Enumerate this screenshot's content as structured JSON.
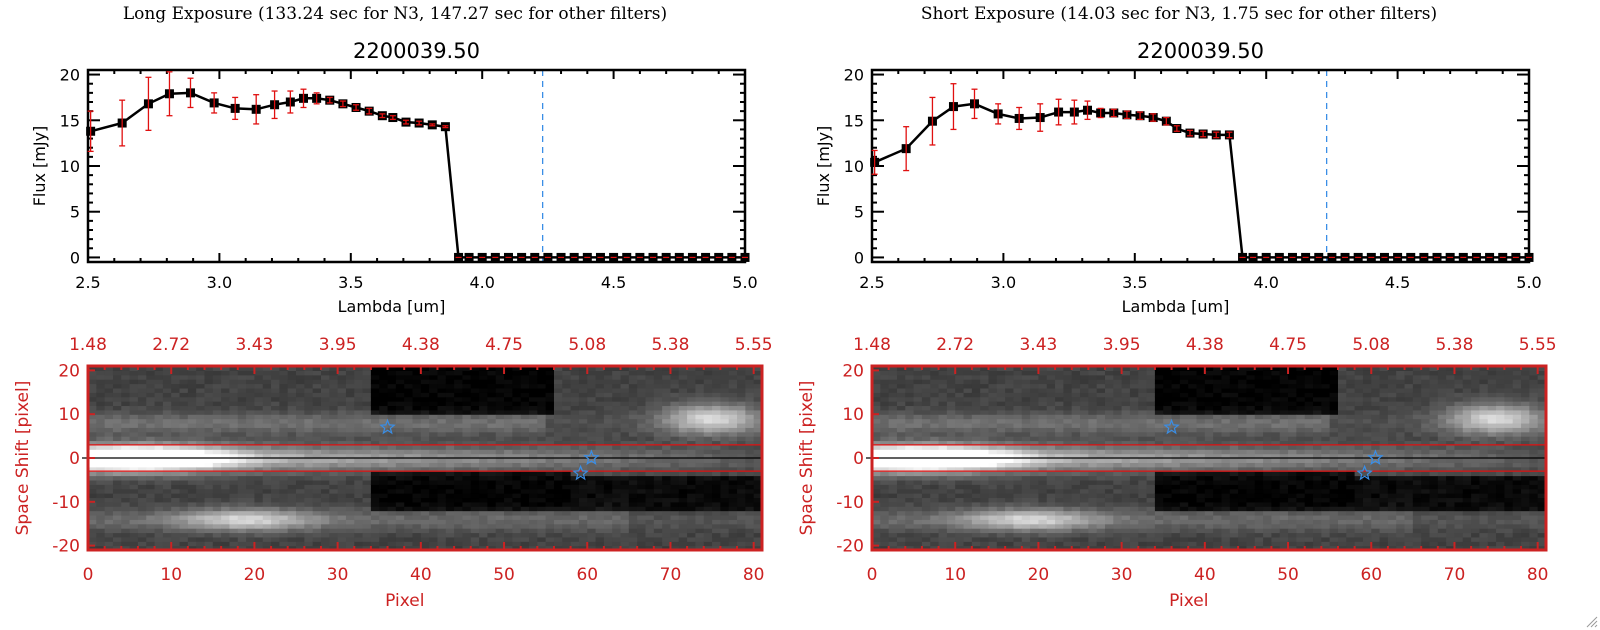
{
  "window": {
    "resize_grip_icon": "resize-grip-icon"
  },
  "chart_data": [
    {
      "panel": "long",
      "exposure_title": "Long Exposure (133.24 sec for N3, 147.27 sec for other filters)",
      "spectrum": {
        "type": "line",
        "title": "2200039.50",
        "xlabel": "Lambda [um]",
        "ylabel": "Flux [mJy]",
        "xlim": [
          2.5,
          5.0
        ],
        "ylim": [
          -0.5,
          20.5
        ],
        "xticks": [
          "2.5",
          "3.0",
          "3.5",
          "4.0",
          "4.5",
          "5.0"
        ],
        "yticks": [
          "0",
          "5",
          "10",
          "15",
          "20"
        ],
        "vline_x": 4.23,
        "zero_line_color": "#e01010",
        "vline_color": "#3a8ee6",
        "series": [
          {
            "name": "flux",
            "x": [
              2.51,
              2.63,
              2.73,
              2.81,
              2.89,
              2.98,
              3.06,
              3.14,
              3.21,
              3.27,
              3.32,
              3.37,
              3.42,
              3.47,
              3.52,
              3.57,
              3.62,
              3.66,
              3.71,
              3.76,
              3.81,
              3.86,
              3.91,
              3.95,
              4.0,
              4.05,
              4.1,
              4.15,
              4.2,
              4.25,
              4.3,
              4.35,
              4.4,
              4.45,
              4.5,
              4.55,
              4.6,
              4.65,
              4.7,
              4.75,
              4.8,
              4.85,
              4.9,
              4.95,
              5.0
            ],
            "y": [
              13.8,
              14.7,
              16.8,
              17.9,
              18.0,
              16.9,
              16.3,
              16.2,
              16.7,
              17.0,
              17.4,
              17.4,
              17.2,
              16.8,
              16.4,
              16.0,
              15.5,
              15.3,
              14.8,
              14.7,
              14.5,
              14.3,
              0,
              0,
              0,
              0,
              0,
              0,
              0,
              0,
              0,
              0,
              0,
              0,
              0,
              0,
              0,
              0,
              0,
              0,
              0,
              0,
              0,
              0,
              0
            ],
            "yerr": [
              2.2,
              2.5,
              2.9,
              2.4,
              1.6,
              1.1,
              1.2,
              1.6,
              1.5,
              1.2,
              1.0,
              0.6,
              0.3,
              0.3,
              0.3,
              0.3,
              0.2,
              0.2,
              0.2,
              0.2,
              0.1,
              0.1,
              0,
              0,
              0,
              0,
              0,
              0,
              0,
              0,
              0,
              0,
              0,
              0,
              0,
              0,
              0,
              0,
              0,
              0,
              0,
              0,
              0,
              0,
              0
            ]
          }
        ]
      },
      "image": {
        "type": "heatmap",
        "xlabel": "Pixel",
        "ylabel": "Space Shift [pixel]",
        "xlim": [
          0,
          81
        ],
        "ylim": [
          -21,
          21
        ],
        "xticks": [
          "0",
          "10",
          "20",
          "30",
          "40",
          "50",
          "60",
          "70",
          "80"
        ],
        "yticks": [
          "-20",
          "-10",
          "0",
          "10",
          "20"
        ],
        "top_ticks": [
          "1.48",
          "2.72",
          "3.43",
          "3.95",
          "4.38",
          "4.75",
          "5.08",
          "5.38",
          "5.55"
        ],
        "aperture": [
          -3,
          3
        ],
        "center_line": 0,
        "axis_color": "#cc2222",
        "star_color": "#3a8ee6",
        "stars": [
          [
            36,
            7
          ],
          [
            60.5,
            0
          ],
          [
            59.2,
            -3.5
          ]
        ]
      }
    },
    {
      "panel": "short",
      "exposure_title": "Short Exposure (14.03 sec for N3, 1.75 sec for other filters)",
      "spectrum": {
        "type": "line",
        "title": "2200039.50",
        "xlabel": "Lambda [um]",
        "ylabel": "Flux [mJy]",
        "xlim": [
          2.5,
          5.0
        ],
        "ylim": [
          -0.5,
          20.5
        ],
        "xticks": [
          "2.5",
          "3.0",
          "3.5",
          "4.0",
          "4.5",
          "5.0"
        ],
        "yticks": [
          "0",
          "5",
          "10",
          "15",
          "20"
        ],
        "vline_x": 4.23,
        "zero_line_color": "#e01010",
        "vline_color": "#3a8ee6",
        "series": [
          {
            "name": "flux",
            "x": [
              2.51,
              2.63,
              2.73,
              2.81,
              2.89,
              2.98,
              3.06,
              3.14,
              3.21,
              3.27,
              3.32,
              3.37,
              3.42,
              3.47,
              3.52,
              3.57,
              3.62,
              3.66,
              3.71,
              3.76,
              3.81,
              3.86,
              3.91,
              3.95,
              4.0,
              4.05,
              4.1,
              4.15,
              4.2,
              4.25,
              4.3,
              4.35,
              4.4,
              4.45,
              4.5,
              4.55,
              4.6,
              4.65,
              4.7,
              4.75,
              4.8,
              4.85,
              4.9,
              4.95,
              5.0
            ],
            "y": [
              10.4,
              11.9,
              14.9,
              16.5,
              16.8,
              15.7,
              15.2,
              15.3,
              15.9,
              15.9,
              16.1,
              15.8,
              15.8,
              15.6,
              15.5,
              15.3,
              14.9,
              14.1,
              13.6,
              13.5,
              13.4,
              13.4,
              0,
              0,
              0,
              0,
              0,
              0,
              0,
              0,
              0,
              0,
              0,
              0,
              0,
              0,
              0,
              0,
              0,
              0,
              0,
              0,
              0,
              0,
              0
            ],
            "yerr": [
              1.3,
              2.4,
              2.6,
              2.5,
              1.6,
              1.1,
              1.2,
              1.5,
              1.4,
              1.3,
              1.0,
              0.5,
              0.4,
              0.4,
              0.4,
              0.4,
              0.4,
              0.3,
              0.3,
              0.3,
              0.3,
              0.3,
              0,
              0,
              0,
              0,
              0,
              0,
              0,
              0,
              0,
              0,
              0,
              0,
              0,
              0,
              0,
              0,
              0,
              0,
              0,
              0,
              0,
              0,
              0
            ]
          }
        ]
      },
      "image": {
        "type": "heatmap",
        "xlabel": "Pixel",
        "ylabel": "Space Shift [pixel]",
        "xlim": [
          0,
          81
        ],
        "ylim": [
          -21,
          21
        ],
        "xticks": [
          "0",
          "10",
          "20",
          "30",
          "40",
          "50",
          "60",
          "70",
          "80"
        ],
        "yticks": [
          "-20",
          "-10",
          "0",
          "10",
          "20"
        ],
        "top_ticks": [
          "1.48",
          "2.72",
          "3.43",
          "3.95",
          "4.38",
          "4.75",
          "5.08",
          "5.38",
          "5.55"
        ],
        "aperture": [
          -3,
          3
        ],
        "center_line": 0,
        "axis_color": "#cc2222",
        "star_color": "#3a8ee6",
        "stars": [
          [
            36,
            7
          ],
          [
            60.5,
            0
          ],
          [
            59.2,
            -3.5
          ]
        ]
      }
    }
  ]
}
